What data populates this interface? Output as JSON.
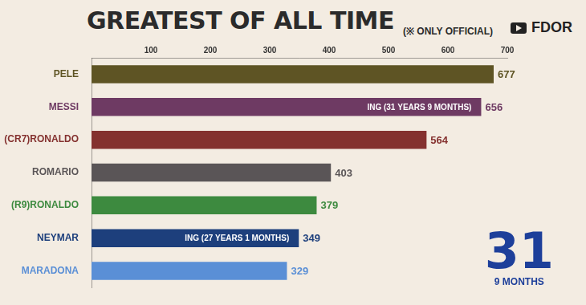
{
  "chart_data": {
    "type": "bar",
    "orientation": "horizontal",
    "title": "GREATEST OF ALL TIME",
    "subtitle": "(※ ONLY OFFICIAL)",
    "source": "FDOR",
    "categories": [
      "PELE",
      "MESSI",
      "(CR7)RONALDO",
      "ROMARIO",
      "(R9)RONALDO",
      "NEYMAR",
      "MARADONA"
    ],
    "values": [
      677,
      656,
      564,
      403,
      379,
      349,
      329
    ],
    "colors": [
      "#5e5424",
      "#6e3a63",
      "#84312f",
      "#5a5557",
      "#3d8a3f",
      "#1d3f7c",
      "#5a8fd6"
    ],
    "annotations": [
      {
        "category": "MESSI",
        "text": "ING (31 YEARS 9 MONTHS)"
      },
      {
        "category": "NEYMAR",
        "text": "ING (27 YEARS 1 MONTHS)"
      }
    ],
    "counter": {
      "value": 31,
      "label": "9 MONTHS"
    },
    "xlim": [
      0,
      700
    ],
    "xticks": [
      100,
      200,
      300,
      400,
      500,
      600,
      700
    ],
    "grid": false,
    "data_labels": true
  }
}
